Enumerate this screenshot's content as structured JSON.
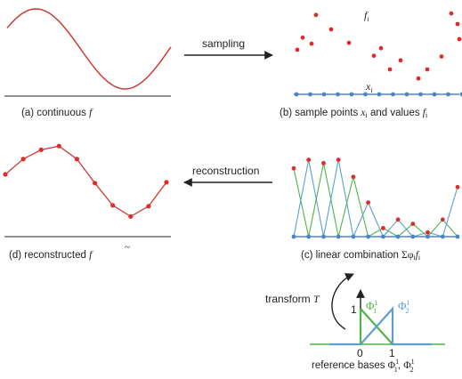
{
  "colors": {
    "curve": "#d03a36",
    "sample_point": "#e02b2b",
    "axis_point": "#4a86c5",
    "green_basis": "#4fb548",
    "blue_basis": "#5b9fd6",
    "axis_line": "#222222"
  },
  "panels": {
    "a": {
      "caption": "(a) continuous",
      "symbol": "f"
    },
    "b": {
      "caption": "(b) sample points",
      "x_symbol": "x",
      "x_sub": "i",
      "mid_text": "and values",
      "f_symbol": "f",
      "f_sub": "i",
      "label_f": "f",
      "label_f_sub": "i",
      "label_x": "x",
      "label_x_sub": "i"
    },
    "c": {
      "caption": "(c) linear combination",
      "sum": "Σφ",
      "sum_sub": "i",
      "f_symbol": "f",
      "f_sub": "i"
    },
    "d": {
      "caption": "(d) reconstructed",
      "symbol": "f",
      "tilde": "~"
    },
    "e": {
      "caption": "reference bases",
      "phi": "Φ",
      "sep": ",",
      "transform_label": "transform",
      "transform_symbol": "T",
      "y_tick": "1",
      "x_tick_0": "0",
      "x_tick_1": "1",
      "sup": "1",
      "sub_1": "1",
      "sub_2": "2"
    }
  },
  "arrows": {
    "sampling": "sampling",
    "reconstruction": "reconstruction"
  },
  "series": {
    "sample_values": [
      0.62,
      0.73,
      0.55,
      0.48,
      0.2,
      0.32,
      0.08,
      0.2,
      0.37,
      0.8,
      0.6,
      0.46,
      0.54,
      0.38,
      0.92,
      0.94
    ],
    "reconstructed_values": [
      0.27,
      0.6,
      0.8,
      0.88,
      0.6,
      0.08,
      -0.4,
      -0.64,
      -0.42,
      0.1
    ]
  }
}
